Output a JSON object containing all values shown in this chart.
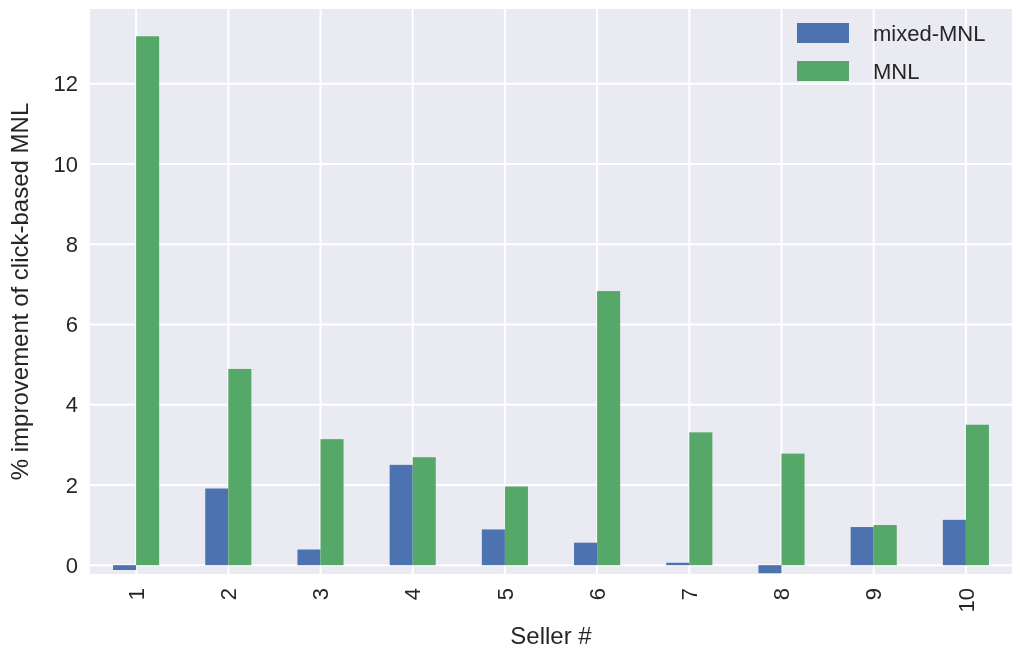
{
  "chart_data": {
    "type": "bar",
    "xlabel": "Seller #",
    "ylabel": "% improvement of click-based MNL",
    "categories": [
      "1",
      "2",
      "3",
      "4",
      "5",
      "6",
      "7",
      "8",
      "9",
      "10"
    ],
    "series": [
      {
        "name": "mixed-MNL",
        "color": "#4c72b0",
        "values": [
          -0.12,
          1.91,
          0.39,
          2.5,
          0.89,
          0.56,
          0.06,
          -0.2,
          0.95,
          1.13
        ]
      },
      {
        "name": "MNL",
        "color": "#55a868",
        "values": [
          13.18,
          4.89,
          3.14,
          2.69,
          1.96,
          6.83,
          3.31,
          2.78,
          1.0,
          3.5
        ]
      }
    ],
    "ylim": [
      -0.22,
      13.86
    ],
    "yticks": [
      0,
      2,
      4,
      6,
      8,
      10,
      12
    ],
    "grid": true,
    "legend": "top right"
  }
}
